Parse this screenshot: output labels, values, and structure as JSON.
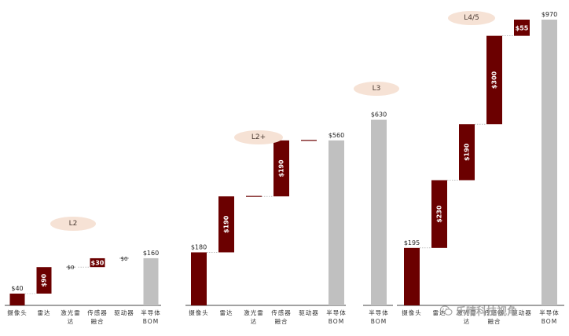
{
  "chart_data": [
    {
      "type": "waterfall",
      "badge": "L2",
      "categories": [
        "摄像头",
        "雷达",
        "激光雷达",
        "传感器融合",
        "驱动器",
        "半导体 BOM"
      ],
      "steps": [
        {
          "category": "摄像头",
          "value": 40,
          "label": "$40",
          "kind": "increase"
        },
        {
          "category": "雷达",
          "value": 90,
          "label": "$90",
          "kind": "increase"
        },
        {
          "category": "激光雷达",
          "value": 0,
          "label": "$0",
          "kind": "zero"
        },
        {
          "category": "传感器融合",
          "value": 30,
          "label": "$30",
          "kind": "increase"
        },
        {
          "category": "驱动器",
          "value": 0,
          "label": "$0",
          "kind": "zero"
        },
        {
          "category": "半导体 BOM",
          "value": 160,
          "label": "$160",
          "kind": "total"
        }
      ]
    },
    {
      "type": "waterfall",
      "badge": "L2+",
      "categories": [
        "摄像头",
        "雷达",
        "激光雷达",
        "传感器融合",
        "驱动器",
        "半导体 BOM"
      ],
      "steps": [
        {
          "category": "摄像头",
          "value": 180,
          "label": "$180",
          "kind": "increase"
        },
        {
          "category": "雷达",
          "value": 190,
          "label": "$190",
          "kind": "increase"
        },
        {
          "category": "激光雷达",
          "value": 0,
          "label": "",
          "kind": "zero"
        },
        {
          "category": "传感器融合",
          "value": 190,
          "label": "$190",
          "kind": "increase"
        },
        {
          "category": "驱动器",
          "value": 0,
          "label": "",
          "kind": "zero"
        },
        {
          "category": "半导体 BOM",
          "value": 560,
          "label": "$560",
          "kind": "total"
        }
      ]
    },
    {
      "type": "waterfall",
      "badge": "L3",
      "categories": [
        "半导体 BOM"
      ],
      "steps": [
        {
          "category": "半导体 BOM",
          "value": 630,
          "label": "$630",
          "kind": "total"
        }
      ]
    },
    {
      "type": "waterfall",
      "badge": "L4/5",
      "categories": [
        "摄像头",
        "雷达",
        "激光雷达",
        "传感器融合",
        "驱动器",
        "半导体 BOM"
      ],
      "steps": [
        {
          "category": "摄像头",
          "value": 195,
          "label": "$195",
          "kind": "increase"
        },
        {
          "category": "雷达",
          "value": 230,
          "label": "$230",
          "kind": "increase"
        },
        {
          "category": "激光雷达",
          "value": 190,
          "label": "$190",
          "kind": "increase"
        },
        {
          "category": "传感器融合",
          "value": 300,
          "label": "$300",
          "kind": "increase"
        },
        {
          "category": "驱动器",
          "value": 55,
          "label": "$55",
          "kind": "increase"
        },
        {
          "category": "半导体 BOM",
          "value": 970,
          "label": "$970",
          "kind": "total"
        }
      ]
    }
  ],
  "colors": {
    "increase": "#6b0000",
    "total": "#c0c0c0",
    "badge": "#f6e2d5",
    "axis": "#444444",
    "connector": "#999999"
  },
  "watermark": {
    "text": "乐晴科技视角",
    "icon": "wechat-icon"
  }
}
